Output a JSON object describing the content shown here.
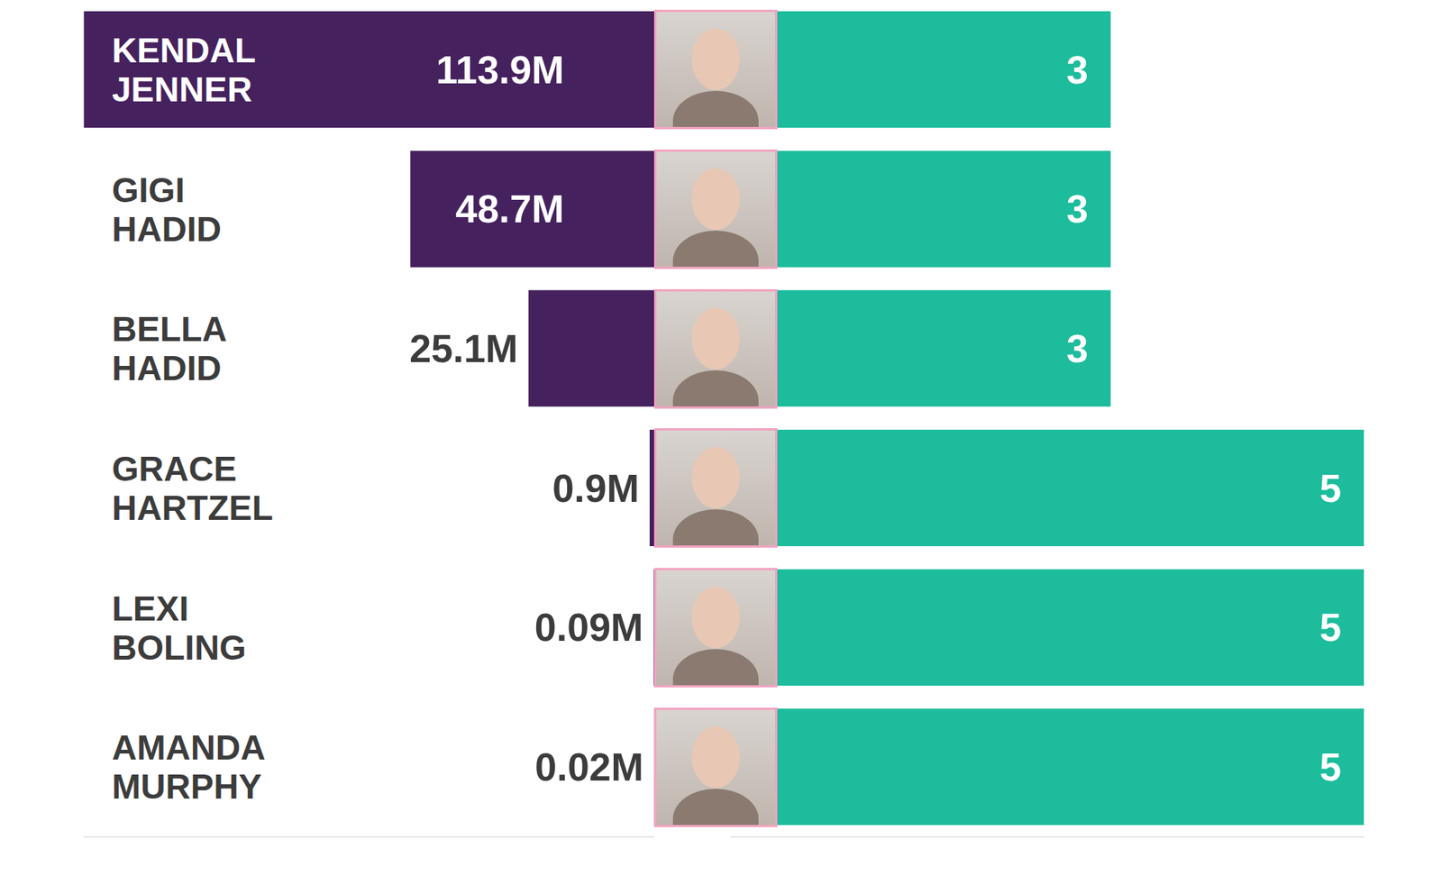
{
  "chart_data": [
    {
      "type": "bar",
      "orientation": "horizontal",
      "categories": [
        "KENDAL JENNER",
        "GIGI HADID",
        "BELLA HADID",
        "GRACE HARTZEL",
        "LEXI BOLING",
        "AMANDA MURPHY"
      ],
      "values": [
        113.9,
        48.7,
        25.1,
        0.9,
        0.09,
        0.02
      ],
      "value_labels": [
        "113.9M",
        "48.7M",
        "25.1M",
        "0.9M",
        "0.09M",
        "0.02M"
      ],
      "color": "#45215e",
      "xlim": [
        114,
        0
      ],
      "data_labels": true,
      "tick_labels": "y"
    },
    {
      "type": "bar",
      "orientation": "horizontal",
      "categories": [
        null,
        null,
        null,
        null,
        null,
        null
      ],
      "values": [
        3,
        3,
        3,
        5,
        5,
        5
      ],
      "color": "#1cbc9c",
      "xlim": [
        0,
        5
      ],
      "data_labels": true,
      "tick_labels": false
    }
  ]
}
